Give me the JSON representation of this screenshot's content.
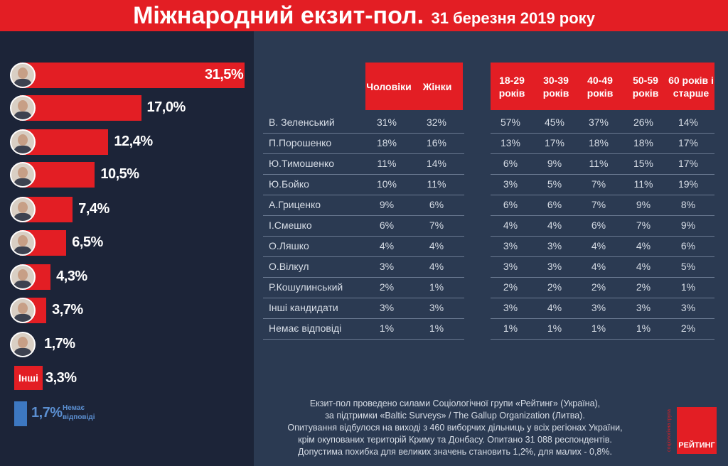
{
  "header": {
    "title": "Міжнародний екзит-пол.",
    "date": "31 березня 2019 року"
  },
  "chart_data": [
    {
      "type": "bar",
      "categories": [
        "В. Зеленський",
        "П.Порошенко",
        "Ю.Тимошенко",
        "Ю.Бойко",
        "А.Гриценко",
        "І.Смешко",
        "О.Ляшко",
        "О.Вілкул",
        "Р.Кошулинський",
        "Інші",
        "Немає відповіді"
      ],
      "values": [
        31.5,
        17.0,
        12.4,
        10.5,
        7.4,
        6.5,
        4.3,
        3.7,
        1.7,
        3.3,
        1.7
      ],
      "value_labels": [
        "31,5%",
        "17,0%",
        "12,4%",
        "10,5%",
        "7,4%",
        "6,5%",
        "4,3%",
        "3,7%",
        "1,7%",
        "3,3%",
        "1,7%"
      ],
      "others_label": "Інші",
      "noanswer_label": "Немає відповіді",
      "colors": {
        "bar": "#e31e24",
        "noanswer": "#3d78c1"
      }
    },
    {
      "type": "table",
      "columns": [
        "Чоловіки",
        "Жінки",
        "18-29 років",
        "30-39 років",
        "40-49 років",
        "50-59 років",
        "60 років і старше"
      ],
      "rows": [
        {
          "name": "В. Зеленський",
          "values": [
            "31%",
            "32%",
            "57%",
            "45%",
            "37%",
            "26%",
            "14%"
          ]
        },
        {
          "name": "П.Порошенко",
          "values": [
            "18%",
            "16%",
            "13%",
            "17%",
            "18%",
            "18%",
            "17%"
          ]
        },
        {
          "name": "Ю.Тимошенко",
          "values": [
            "11%",
            "14%",
            "6%",
            "9%",
            "11%",
            "15%",
            "17%"
          ]
        },
        {
          "name": "Ю.Бойко",
          "values": [
            "10%",
            "11%",
            "3%",
            "5%",
            "7%",
            "11%",
            "19%"
          ]
        },
        {
          "name": "А.Гриценко",
          "values": [
            "9%",
            "6%",
            "6%",
            "6%",
            "7%",
            "9%",
            "8%"
          ]
        },
        {
          "name": "І.Смешко",
          "values": [
            "6%",
            "7%",
            "4%",
            "4%",
            "6%",
            "7%",
            "9%"
          ]
        },
        {
          "name": "О.Ляшко",
          "values": [
            "4%",
            "4%",
            "3%",
            "3%",
            "4%",
            "4%",
            "6%"
          ]
        },
        {
          "name": "О.Вілкул",
          "values": [
            "3%",
            "4%",
            "3%",
            "3%",
            "4%",
            "4%",
            "5%"
          ]
        },
        {
          "name": "Р.Кошулинський",
          "values": [
            "2%",
            "1%",
            "2%",
            "2%",
            "2%",
            "2%",
            "1%"
          ]
        },
        {
          "name": "Інші кандидати",
          "values": [
            "3%",
            "3%",
            "3%",
            "4%",
            "3%",
            "3%",
            "3%"
          ]
        },
        {
          "name": "Немає відповіді",
          "values": [
            "1%",
            "1%",
            "1%",
            "1%",
            "1%",
            "1%",
            "2%"
          ]
        }
      ]
    }
  ],
  "footnote": [
    "Екзит-пол проведено силами Соціологічної групи «Рейтинг» (Україна),",
    "за підтримки «Baltic Surveys» / The Gallup Organization (Литва).",
    "Опитування відбулося на виході з 460 виборчих дільниць у всіх регіонах України,",
    "крім окупованих територій Криму та Донбасу. Опитано 31 088 респондентів.",
    "Допустима похибка для великих значень становить 1,2%, для малих - 0,8%."
  ],
  "logo": {
    "name": "РЕЙТИНГ",
    "side_text": "соціологічна група"
  }
}
